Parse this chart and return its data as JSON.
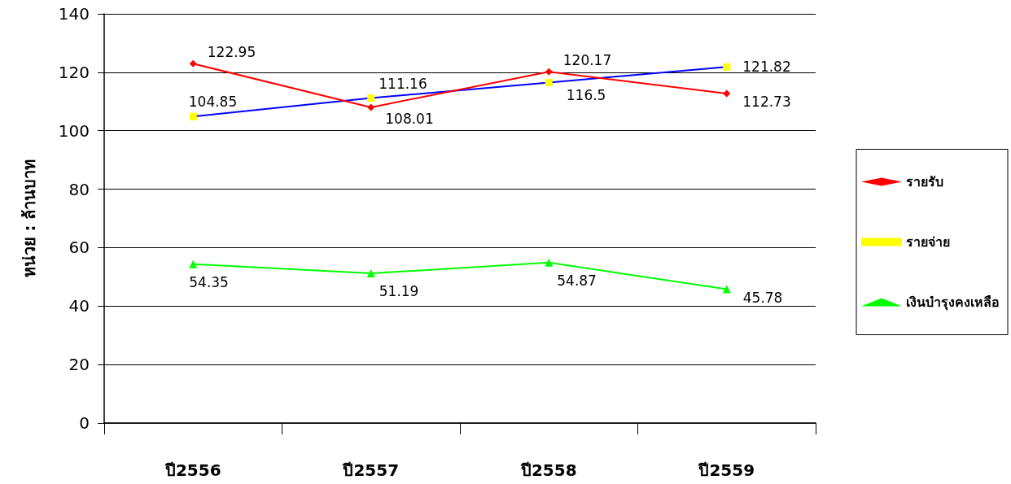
{
  "chart_data": {
    "type": "line",
    "ylabel": "หน่วย : ล้านบาท",
    "categories": [
      "ปี2556",
      "ปี2557",
      "ปี2558",
      "ปี2559"
    ],
    "series": [
      {
        "name": "รายรับ",
        "color": "#ff0000",
        "marker": "diamond",
        "values": [
          122.95,
          108.01,
          120.17,
          112.73
        ]
      },
      {
        "name": "รายจ่าย",
        "color": "#0000ff",
        "colors": [
          "#ffff00",
          "#ffff00",
          "#ffff00",
          "#ffff00"
        ],
        "marker": "square",
        "values": [
          104.85,
          111.16,
          116.5,
          121.82
        ]
      },
      {
        "name": "เงินบำรุงคงเหลือ",
        "color": "#00ff00",
        "marker": "triangle",
        "values": [
          54.35,
          51.19,
          54.87,
          45.78
        ]
      }
    ],
    "ylim": [
      0,
      140
    ],
    "yticks": [
      0,
      20,
      40,
      60,
      80,
      100,
      120,
      140
    ],
    "grid": "y",
    "legend": "right",
    "data_labels": true,
    "line_style": "solid"
  }
}
